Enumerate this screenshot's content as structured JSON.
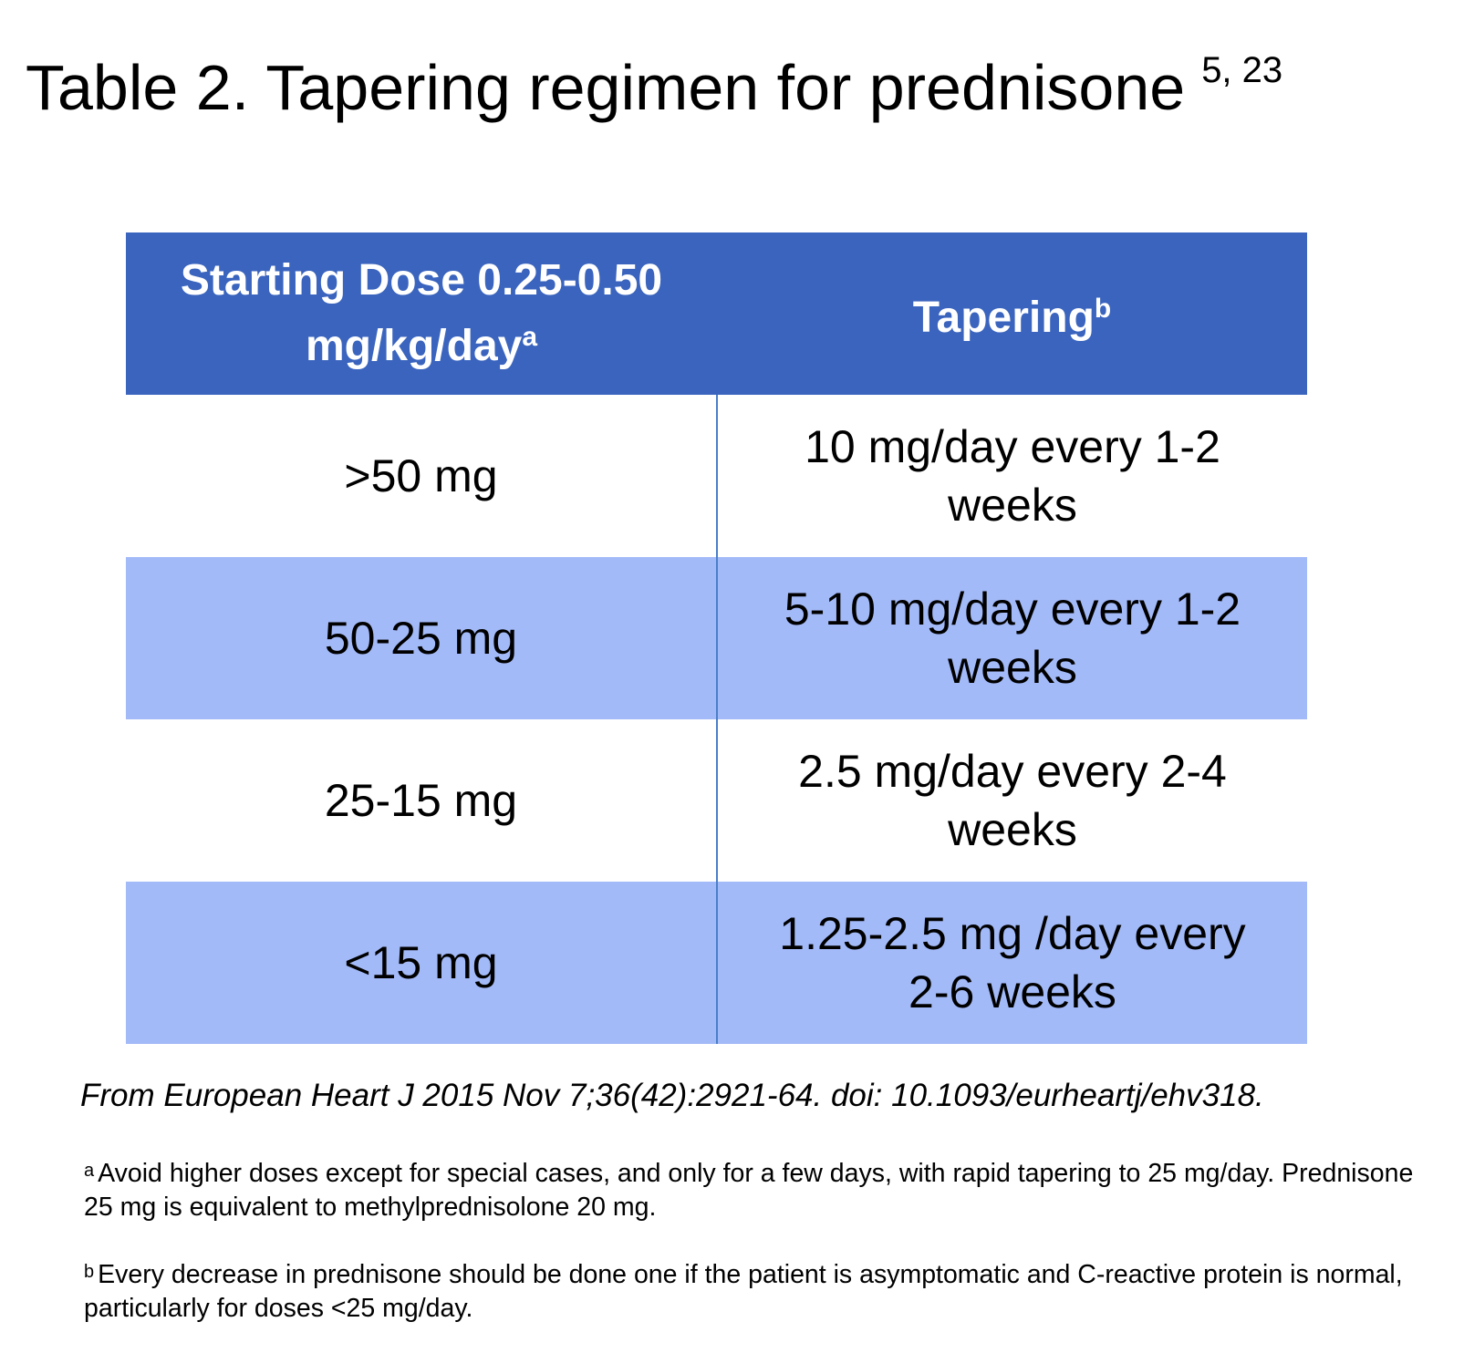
{
  "title": {
    "text": "Table 2. Tapering regimen for prednisone",
    "refs": "5, 23"
  },
  "table": {
    "header": [
      {
        "text": "Starting Dose 0.25-0.50 mg/kg/day",
        "note": "a"
      },
      {
        "text": "Tapering",
        "note": "b"
      }
    ],
    "rows": [
      [
        ">50 mg",
        "10 mg/day every 1-2 weeks"
      ],
      [
        "50-25 mg",
        "5-10 mg/day every 1-2 weeks"
      ],
      [
        "25-15 mg",
        "2.5 mg/day every 2-4 weeks"
      ],
      [
        "<15 mg",
        "1.25-2.5 mg /day every 2-6 weeks"
      ]
    ]
  },
  "source": "From European Heart J 2015 Nov 7;36(42):2921-64. doi: 10.1093/eurheartj/ehv318.",
  "footnotes": [
    {
      "marker": "a",
      "text": "Avoid higher doses except for special cases, and only for a few days, with rapid tapering to 25 mg/day. Prednisone 25 mg is equivalent to methylprednisolone 20 mg."
    },
    {
      "marker": "b",
      "text": "Every decrease in prednisone should be done one if the patient is asymptomatic and C-reactive protein is normal, particularly for doses <25 mg/day."
    }
  ]
}
